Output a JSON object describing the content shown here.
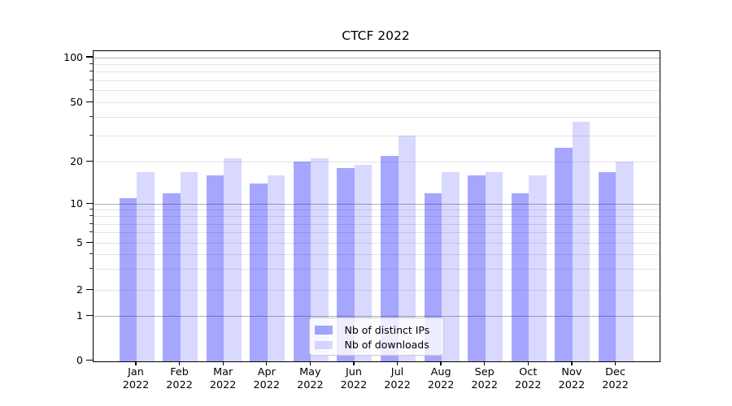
{
  "chart_data": {
    "type": "bar",
    "title": "CTCF 2022",
    "categories": [
      "Jan 2022",
      "Feb 2022",
      "Mar 2022",
      "Apr 2022",
      "May 2022",
      "Jun 2022",
      "Jul 2022",
      "Aug 2022",
      "Sep 2022",
      "Oct 2022",
      "Nov 2022",
      "Dec 2022"
    ],
    "series": [
      {
        "name": "Nb of distinct IPs",
        "color": "#a6a6ff",
        "rgba": "rgba(0,0,255,0.35)",
        "values": [
          11,
          12,
          16,
          14,
          20,
          18,
          22,
          12,
          16,
          12,
          25,
          17
        ]
      },
      {
        "name": "Nb of downloads",
        "color": "#d9d9ff",
        "rgba": "rgba(0,0,255,0.15)",
        "values": [
          17,
          17,
          21,
          16,
          21,
          19,
          30,
          17,
          17,
          16,
          37,
          20
        ]
      }
    ],
    "xlabel": "",
    "ylabel": "",
    "yscale": "symlog",
    "yticks": [
      0,
      1,
      2,
      5,
      10,
      20,
      50,
      100
    ],
    "ylim": [
      0,
      110
    ],
    "grid": true,
    "major_grid_color": "#b0b0b0",
    "minor_grid_color": "#e4e4e4",
    "legend_position": "lower center"
  }
}
